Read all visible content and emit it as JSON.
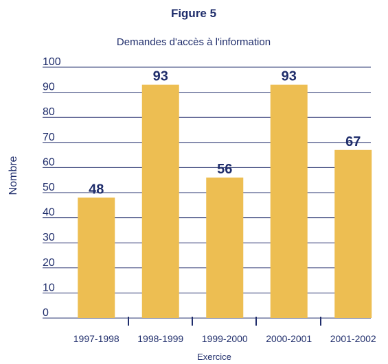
{
  "chart_data": {
    "type": "bar",
    "title": "Figure 5",
    "subtitle": "Demandes d'accès à l'information",
    "x_label": "Exercice",
    "y_label": "Nombre",
    "categories": [
      "1997-1998",
      "1998-1999",
      "1999-2000",
      "2000-2001",
      "2001-2002"
    ],
    "values": [
      48,
      93,
      56,
      93,
      67
    ],
    "color": "#edbe52",
    "ylim": [
      0,
      100
    ],
    "yticks": [
      0,
      10,
      20,
      30,
      40,
      50,
      60,
      70,
      80,
      90,
      100
    ],
    "grid": true
  }
}
